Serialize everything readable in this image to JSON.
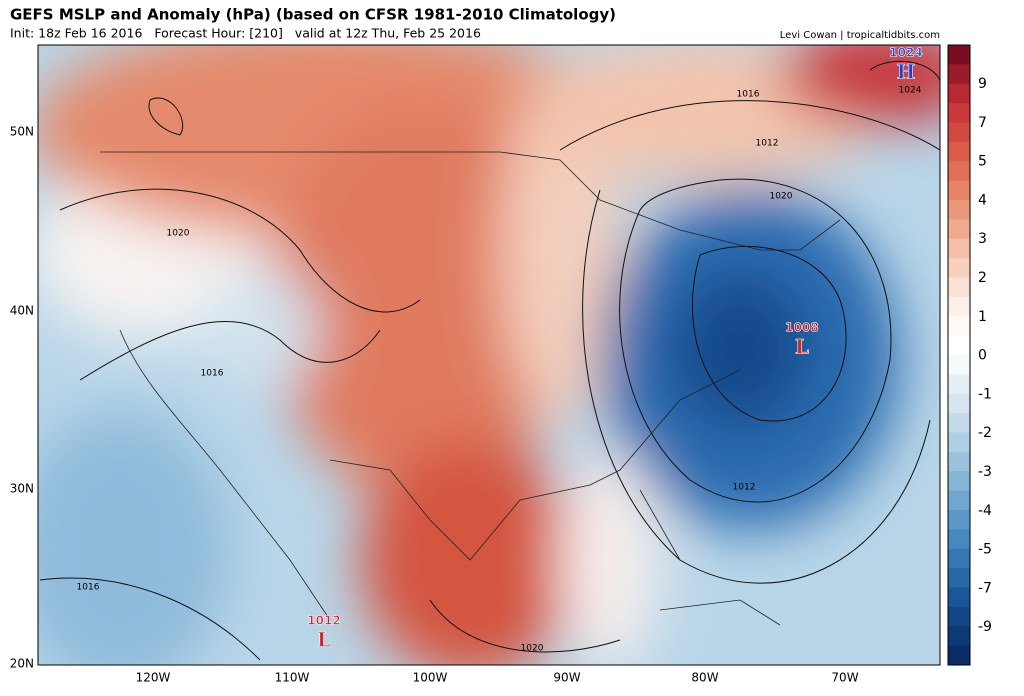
{
  "header": {
    "title": "GEFS MSLP and Anomaly (hPa) (based on CFSR 1981-2010 Climatology)",
    "subtitle": "Init: 18z Feb 16 2016   Forecast Hour: [210]   valid at 12z Thu, Feb 25 2016",
    "credit": "Levi Cowan | tropicaltidbits.com"
  },
  "lat_labels": [
    "50N",
    "40N",
    "30N",
    "20N"
  ],
  "lon_labels": [
    "120W",
    "110W",
    "100W",
    "90W",
    "80W",
    "70W"
  ],
  "colorbar_labels": [
    9,
    7,
    5,
    4,
    3,
    2,
    1,
    0,
    -1,
    -2,
    -3,
    -4,
    -5,
    -7,
    -9
  ],
  "isobar_labels": [
    "1020",
    "1016",
    "1012",
    "1020",
    "1016",
    "1012",
    "1016",
    "1020",
    "1024"
  ],
  "centers": [
    {
      "value": "1024",
      "letter": "H"
    },
    {
      "value": "1008",
      "letter": "L"
    },
    {
      "value": "1012",
      "letter": "L"
    }
  ]
}
